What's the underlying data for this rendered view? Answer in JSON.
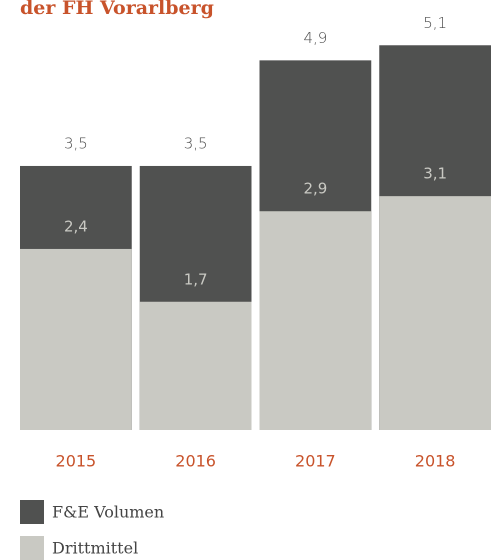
{
  "chart_data": {
    "type": "bar",
    "title": "der FH Vorarlberg",
    "categories": [
      "2015",
      "2016",
      "2017",
      "2018"
    ],
    "series": [
      {
        "name": "F&E Volumen",
        "color": "#505150",
        "values": [
          3.5,
          3.5,
          4.9,
          5.1
        ],
        "value_labels": [
          "3,5",
          "3,5",
          "4,9",
          "5,1"
        ]
      },
      {
        "name": "Drittmittel",
        "color": "#c9c9c3",
        "values": [
          2.4,
          1.7,
          2.9,
          3.1
        ],
        "value_labels": [
          "2,4",
          "1,7",
          "2,9",
          "3,1"
        ]
      }
    ],
    "ylim": [
      0,
      5.7
    ]
  }
}
